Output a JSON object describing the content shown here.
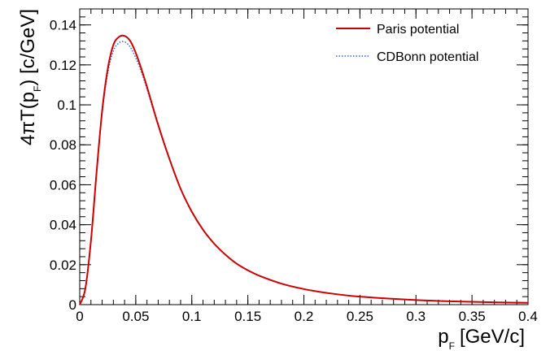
{
  "chart_data": {
    "type": "line",
    "xlabel": "p",
    "xlabel_sub": "F",
    "xlabel_unit": "[GeV/c]",
    "ylabel_pre": "4πT(p",
    "ylabel_sub": "F",
    "ylabel_post": ") [c/GeV]",
    "xlim": [
      0,
      0.4
    ],
    "ylim": [
      0,
      0.148
    ],
    "x_ticks": [
      0,
      0.05,
      0.1,
      0.15,
      0.2,
      0.25,
      0.3,
      0.35,
      0.4
    ],
    "x_tick_labels": [
      "0",
      "0.05",
      "0.1",
      "0.15",
      "0.2",
      "0.25",
      "0.3",
      "0.35",
      "0.4"
    ],
    "y_ticks": [
      0,
      0.02,
      0.04,
      0.06,
      0.08,
      0.1,
      0.12,
      0.14
    ],
    "y_tick_labels": [
      "0",
      "0.02",
      "0.04",
      "0.06",
      "0.08",
      "0.1",
      "0.12",
      "0.14"
    ],
    "grid": false,
    "legend_position": "top-right",
    "series": [
      {
        "name": "Paris potential",
        "color": "#cc0000",
        "style": "solid",
        "x": [
          0,
          0.005,
          0.01,
          0.015,
          0.02,
          0.025,
          0.03,
          0.035,
          0.04,
          0.045,
          0.05,
          0.055,
          0.06,
          0.07,
          0.08,
          0.09,
          0.1,
          0.11,
          0.12,
          0.13,
          0.14,
          0.15,
          0.16,
          0.18,
          0.2,
          0.22,
          0.25,
          0.3,
          0.35,
          0.4
        ],
        "values": [
          0,
          0.008,
          0.032,
          0.066,
          0.097,
          0.118,
          0.13,
          0.134,
          0.1345,
          0.132,
          0.126,
          0.118,
          0.109,
          0.09,
          0.073,
          0.058,
          0.0465,
          0.0375,
          0.0305,
          0.025,
          0.0205,
          0.0172,
          0.0145,
          0.0105,
          0.0078,
          0.0059,
          0.004,
          0.0023,
          0.0014,
          0.0009
        ]
      },
      {
        "name": "CDBonn potential",
        "color": "#3366cc",
        "style": "dotted",
        "x": [
          0,
          0.005,
          0.01,
          0.015,
          0.02,
          0.025,
          0.03,
          0.035,
          0.04,
          0.045,
          0.05,
          0.055,
          0.06,
          0.07,
          0.08,
          0.09,
          0.1,
          0.11,
          0.12,
          0.13,
          0.14,
          0.15,
          0.16,
          0.18,
          0.2,
          0.22,
          0.25,
          0.3,
          0.35,
          0.4
        ],
        "values": [
          0,
          0.008,
          0.032,
          0.066,
          0.096,
          0.116,
          0.127,
          0.131,
          0.1315,
          0.129,
          0.1235,
          0.1165,
          0.108,
          0.0895,
          0.073,
          0.058,
          0.0465,
          0.0375,
          0.0305,
          0.025,
          0.0205,
          0.0172,
          0.0145,
          0.0105,
          0.0078,
          0.0059,
          0.004,
          0.0023,
          0.0014,
          0.0009
        ]
      }
    ]
  }
}
